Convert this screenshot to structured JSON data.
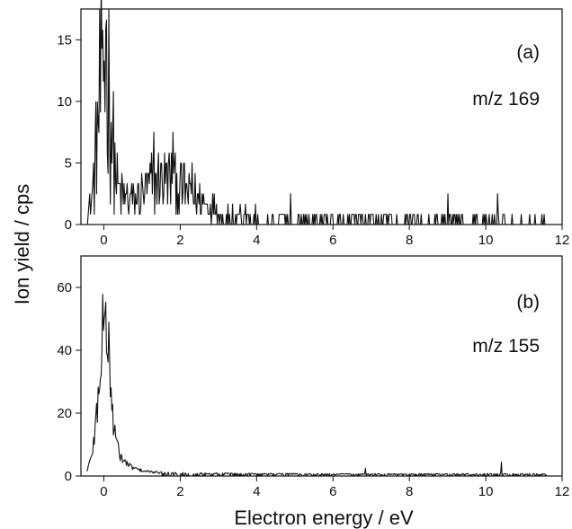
{
  "chart_data": {
    "type": "line",
    "shared_xlabel": "Electron energy / eV",
    "shared_ylabel": "Ion yield / cps",
    "panels": [
      {
        "panel_label": "(a)",
        "annotation": "m/z 169",
        "xlim": [
          -0.6,
          12
        ],
        "ylim": [
          0,
          17.5
        ],
        "xticks": [
          0,
          2,
          4,
          6,
          8,
          10,
          12
        ],
        "yticks": [
          0,
          5,
          10,
          15
        ],
        "grid": false,
        "envelope": {
          "x": [
            -0.45,
            -0.35,
            -0.25,
            -0.15,
            -0.08,
            -0.02,
            0.03,
            0.08,
            0.13,
            0.2,
            0.28,
            0.38,
            0.5,
            0.7,
            0.9,
            1.1,
            1.3,
            1.5,
            1.7,
            1.9,
            2.1,
            2.3,
            2.5,
            2.7,
            3.0,
            3.3,
            3.7,
            4.2,
            5.0,
            6.0,
            8.0,
            10.0,
            11.6
          ],
          "y": [
            0.8,
            1.5,
            4.0,
            8.5,
            11.5,
            13.0,
            13.5,
            12.5,
            11.0,
            8.0,
            5.0,
            3.0,
            2.2,
            2.0,
            2.2,
            2.8,
            3.4,
            3.7,
            3.6,
            3.3,
            2.8,
            2.4,
            2.0,
            1.6,
            1.3,
            1.1,
            0.9,
            0.75,
            0.6,
            0.5,
            0.45,
            0.4,
            0.4
          ]
        },
        "peaks": [
          {
            "x": 0.05,
            "y": 15.9
          },
          {
            "x": -0.05,
            "y": 14.3
          },
          {
            "x": 1.32,
            "y": 7.5
          },
          {
            "x": 1.82,
            "y": 7.5
          },
          {
            "x": 2.32,
            "y": 5.0
          },
          {
            "x": 4.88,
            "y": 2.5
          },
          {
            "x": 9.0,
            "y": 2.5
          },
          {
            "x": 10.3,
            "y": 2.5
          }
        ]
      },
      {
        "panel_label": "(b)",
        "annotation": "m/z 155",
        "xlim": [
          -0.6,
          12
        ],
        "ylim": [
          0,
          70
        ],
        "xticks": [
          0,
          2,
          4,
          6,
          8,
          10,
          12
        ],
        "yticks": [
          0,
          20,
          40,
          60
        ],
        "grid": false,
        "envelope": {
          "x": [
            -0.45,
            -0.35,
            -0.25,
            -0.15,
            -0.08,
            -0.02,
            0.03,
            0.08,
            0.13,
            0.2,
            0.28,
            0.38,
            0.5,
            0.7,
            0.9,
            1.1,
            1.3,
            1.6,
            2.0,
            3.0,
            4.0,
            6.0,
            8.0,
            10.0,
            11.6
          ],
          "y": [
            1.5,
            5.0,
            12.0,
            25.0,
            38.0,
            46.0,
            48.0,
            44.0,
            36.0,
            24.0,
            14.0,
            8.0,
            5.0,
            3.0,
            2.0,
            1.5,
            1.2,
            1.0,
            0.9,
            0.8,
            0.7,
            0.6,
            0.6,
            0.6,
            0.6
          ]
        },
        "peaks": [
          {
            "x": 0.04,
            "y": 52.0
          },
          {
            "x": 0.14,
            "y": 49.0
          },
          {
            "x": 10.4,
            "y": 4.5
          },
          {
            "x": 6.85,
            "y": 2.5
          }
        ]
      }
    ]
  }
}
